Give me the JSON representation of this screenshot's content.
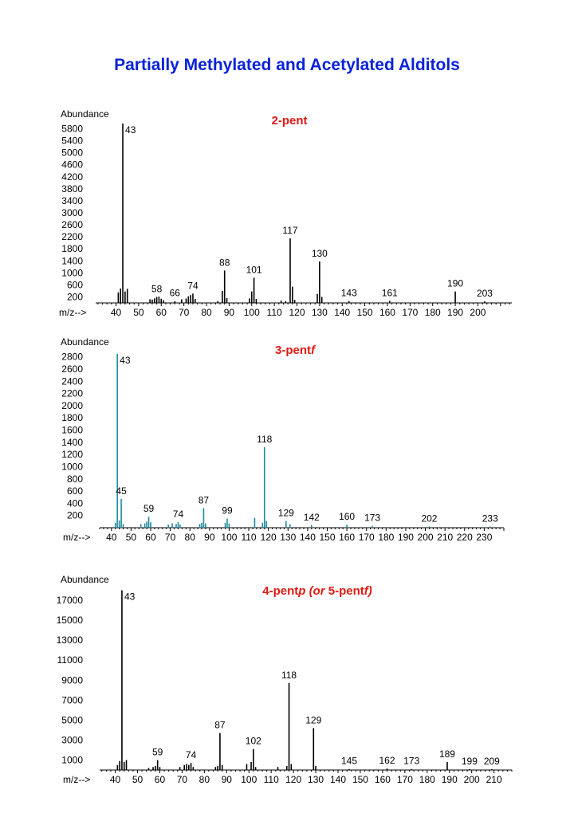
{
  "page": {
    "title": "Partially Methylated and Acetylated Alditols"
  },
  "chart_data": [
    {
      "type": "bar",
      "title_parts": [
        {
          "text": "2-pent",
          "italic": false
        }
      ],
      "ylabel": "Abundance",
      "xlabel": "m/z-->",
      "bar_color": "#000000",
      "ylim": [
        0,
        6000
      ],
      "yticks": [
        200,
        600,
        1000,
        1400,
        1800,
        2200,
        2600,
        3000,
        3400,
        3800,
        4200,
        4600,
        5000,
        5400,
        5800
      ],
      "ytick_labels": [
        "200",
        "600",
        "1000",
        "1400",
        "1800",
        "2200",
        "2600",
        "3000",
        "3400",
        "3800",
        "4200",
        "4600",
        "5000",
        "5400",
        "5800"
      ],
      "xlim": [
        31,
        215
      ],
      "xticks": [
        40,
        50,
        60,
        70,
        80,
        90,
        100,
        110,
        120,
        130,
        140,
        150,
        160,
        170,
        180,
        190,
        200
      ],
      "peaks": [
        {
          "mz": 41,
          "v": 350
        },
        {
          "mz": 42,
          "v": 480
        },
        {
          "mz": 43,
          "v": 5980
        },
        {
          "mz": 44,
          "v": 380
        },
        {
          "mz": 45,
          "v": 470
        },
        {
          "mz": 55,
          "v": 120
        },
        {
          "mz": 56,
          "v": 110
        },
        {
          "mz": 57,
          "v": 150
        },
        {
          "mz": 58,
          "v": 200
        },
        {
          "mz": 59,
          "v": 210
        },
        {
          "mz": 60,
          "v": 140
        },
        {
          "mz": 61,
          "v": 90
        },
        {
          "mz": 66,
          "v": 60
        },
        {
          "mz": 69,
          "v": 120
        },
        {
          "mz": 71,
          "v": 150
        },
        {
          "mz": 72,
          "v": 220
        },
        {
          "mz": 73,
          "v": 260
        },
        {
          "mz": 74,
          "v": 310
        },
        {
          "mz": 75,
          "v": 130
        },
        {
          "mz": 85,
          "v": 60
        },
        {
          "mz": 87,
          "v": 400
        },
        {
          "mz": 88,
          "v": 1080
        },
        {
          "mz": 89,
          "v": 160
        },
        {
          "mz": 99,
          "v": 150
        },
        {
          "mz": 100,
          "v": 380
        },
        {
          "mz": 101,
          "v": 840
        },
        {
          "mz": 102,
          "v": 130
        },
        {
          "mz": 113,
          "v": 80
        },
        {
          "mz": 115,
          "v": 60
        },
        {
          "mz": 117,
          "v": 2150
        },
        {
          "mz": 118,
          "v": 540
        },
        {
          "mz": 119,
          "v": 100
        },
        {
          "mz": 129,
          "v": 300
        },
        {
          "mz": 130,
          "v": 1380
        },
        {
          "mz": 131,
          "v": 200
        },
        {
          "mz": 143,
          "v": 60
        },
        {
          "mz": 161,
          "v": 70
        },
        {
          "mz": 190,
          "v": 380
        },
        {
          "mz": 203,
          "v": 50
        }
      ],
      "labels": [
        {
          "mz": 43,
          "text": "43"
        },
        {
          "mz": 58,
          "text": "58"
        },
        {
          "mz": 66,
          "text": "66"
        },
        {
          "mz": 74,
          "text": "74"
        },
        {
          "mz": 88,
          "text": "88"
        },
        {
          "mz": 101,
          "text": "101"
        },
        {
          "mz": 117,
          "text": "117"
        },
        {
          "mz": 130,
          "text": "130"
        },
        {
          "mz": 143,
          "text": "143"
        },
        {
          "mz": 161,
          "text": "161"
        },
        {
          "mz": 190,
          "text": "190"
        },
        {
          "mz": 203,
          "text": "203"
        }
      ]
    },
    {
      "type": "bar",
      "title_parts": [
        {
          "text": "3-pent",
          "italic": false
        },
        {
          "text": "f",
          "italic": true
        }
      ],
      "ylabel": "Abundance",
      "xlabel": "m/z-->",
      "bar_color": "#1f8a9c",
      "ylim": [
        0,
        2900
      ],
      "yticks": [
        200,
        400,
        600,
        800,
        1000,
        1200,
        1400,
        1600,
        1800,
        2000,
        2200,
        2400,
        2600,
        2800
      ],
      "ytick_labels": [
        "200",
        "400",
        "600",
        "800",
        "1000",
        "1200",
        "1400",
        "1600",
        "1800",
        "2000",
        "2200",
        "2400",
        "2600",
        "2800"
      ],
      "xlim": [
        34,
        240
      ],
      "xticks": [
        40,
        50,
        60,
        70,
        80,
        90,
        100,
        110,
        120,
        130,
        140,
        150,
        160,
        170,
        180,
        190,
        200,
        210,
        220,
        230
      ],
      "peaks": [
        {
          "mz": 42,
          "v": 80
        },
        {
          "mz": 43,
          "v": 2850
        },
        {
          "mz": 44,
          "v": 120
        },
        {
          "mz": 45,
          "v": 470
        },
        {
          "mz": 46,
          "v": 60
        },
        {
          "mz": 55,
          "v": 60
        },
        {
          "mz": 57,
          "v": 70
        },
        {
          "mz": 58,
          "v": 100
        },
        {
          "mz": 59,
          "v": 180
        },
        {
          "mz": 60,
          "v": 90
        },
        {
          "mz": 69,
          "v": 50
        },
        {
          "mz": 71,
          "v": 70
        },
        {
          "mz": 73,
          "v": 60
        },
        {
          "mz": 74,
          "v": 90
        },
        {
          "mz": 75,
          "v": 50
        },
        {
          "mz": 85,
          "v": 60
        },
        {
          "mz": 86,
          "v": 80
        },
        {
          "mz": 87,
          "v": 320
        },
        {
          "mz": 88,
          "v": 70
        },
        {
          "mz": 98,
          "v": 80
        },
        {
          "mz": 99,
          "v": 150
        },
        {
          "mz": 100,
          "v": 70
        },
        {
          "mz": 113,
          "v": 160
        },
        {
          "mz": 117,
          "v": 80
        },
        {
          "mz": 118,
          "v": 1320
        },
        {
          "mz": 119,
          "v": 110
        },
        {
          "mz": 129,
          "v": 110
        },
        {
          "mz": 131,
          "v": 60
        },
        {
          "mz": 142,
          "v": 40
        },
        {
          "mz": 160,
          "v": 50
        },
        {
          "mz": 173,
          "v": 30
        },
        {
          "mz": 202,
          "v": 20
        },
        {
          "mz": 233,
          "v": 20
        }
      ],
      "labels": [
        {
          "mz": 43,
          "text": "43"
        },
        {
          "mz": 45,
          "text": "45"
        },
        {
          "mz": 59,
          "text": "59"
        },
        {
          "mz": 74,
          "text": "74"
        },
        {
          "mz": 87,
          "text": "87"
        },
        {
          "mz": 99,
          "text": "99"
        },
        {
          "mz": 118,
          "text": "118"
        },
        {
          "mz": 129,
          "text": "129"
        },
        {
          "mz": 142,
          "text": "142"
        },
        {
          "mz": 160,
          "text": "160"
        },
        {
          "mz": 173,
          "text": "173"
        },
        {
          "mz": 202,
          "text": "202"
        },
        {
          "mz": 233,
          "text": "233"
        }
      ]
    },
    {
      "type": "bar",
      "title_parts": [
        {
          "text": "4-pent",
          "italic": false
        },
        {
          "text": "p (or ",
          "italic": true
        },
        {
          "text": "5-pent",
          "italic": false
        },
        {
          "text": "f)",
          "italic": true
        }
      ],
      "ylabel": "Abundance",
      "xlabel": "m/z-->",
      "bar_color": "#000000",
      "ylim": [
        0,
        18200
      ],
      "yticks": [
        1000,
        3000,
        5000,
        7000,
        9000,
        11000,
        13000,
        15000,
        17000
      ],
      "ytick_labels": [
        "1000",
        "3000",
        "5000",
        "7000",
        "9000",
        "11000",
        "13000",
        "15000",
        "17000"
      ],
      "xlim": [
        33,
        218
      ],
      "xticks": [
        40,
        50,
        60,
        70,
        80,
        90,
        100,
        110,
        120,
        130,
        140,
        150,
        160,
        170,
        180,
        190,
        200,
        210
      ],
      "peaks": [
        {
          "mz": 41,
          "v": 500
        },
        {
          "mz": 42,
          "v": 900
        },
        {
          "mz": 43,
          "v": 18000
        },
        {
          "mz": 44,
          "v": 800
        },
        {
          "mz": 45,
          "v": 1000
        },
        {
          "mz": 55,
          "v": 200
        },
        {
          "mz": 57,
          "v": 300
        },
        {
          "mz": 58,
          "v": 400
        },
        {
          "mz": 59,
          "v": 1000
        },
        {
          "mz": 60,
          "v": 300
        },
        {
          "mz": 69,
          "v": 300
        },
        {
          "mz": 71,
          "v": 500
        },
        {
          "mz": 72,
          "v": 600
        },
        {
          "mz": 73,
          "v": 500
        },
        {
          "mz": 74,
          "v": 700
        },
        {
          "mz": 75,
          "v": 300
        },
        {
          "mz": 85,
          "v": 300
        },
        {
          "mz": 86,
          "v": 400
        },
        {
          "mz": 87,
          "v": 3700
        },
        {
          "mz": 88,
          "v": 500
        },
        {
          "mz": 99,
          "v": 600
        },
        {
          "mz": 101,
          "v": 800
        },
        {
          "mz": 102,
          "v": 2100
        },
        {
          "mz": 103,
          "v": 300
        },
        {
          "mz": 113,
          "v": 300
        },
        {
          "mz": 117,
          "v": 400
        },
        {
          "mz": 118,
          "v": 8700
        },
        {
          "mz": 119,
          "v": 600
        },
        {
          "mz": 129,
          "v": 4200
        },
        {
          "mz": 130,
          "v": 400
        },
        {
          "mz": 145,
          "v": 100
        },
        {
          "mz": 162,
          "v": 150
        },
        {
          "mz": 173,
          "v": 100
        },
        {
          "mz": 189,
          "v": 800
        },
        {
          "mz": 199,
          "v": 80
        },
        {
          "mz": 209,
          "v": 80
        }
      ],
      "labels": [
        {
          "mz": 43,
          "text": "43"
        },
        {
          "mz": 59,
          "text": "59"
        },
        {
          "mz": 74,
          "text": "74"
        },
        {
          "mz": 87,
          "text": "87"
        },
        {
          "mz": 102,
          "text": "102"
        },
        {
          "mz": 118,
          "text": "118"
        },
        {
          "mz": 129,
          "text": "129"
        },
        {
          "mz": 145,
          "text": "145"
        },
        {
          "mz": 162,
          "text": "162"
        },
        {
          "mz": 173,
          "text": "173"
        },
        {
          "mz": 189,
          "text": "189"
        },
        {
          "mz": 199,
          "text": "199"
        },
        {
          "mz": 209,
          "text": "209"
        }
      ]
    }
  ]
}
